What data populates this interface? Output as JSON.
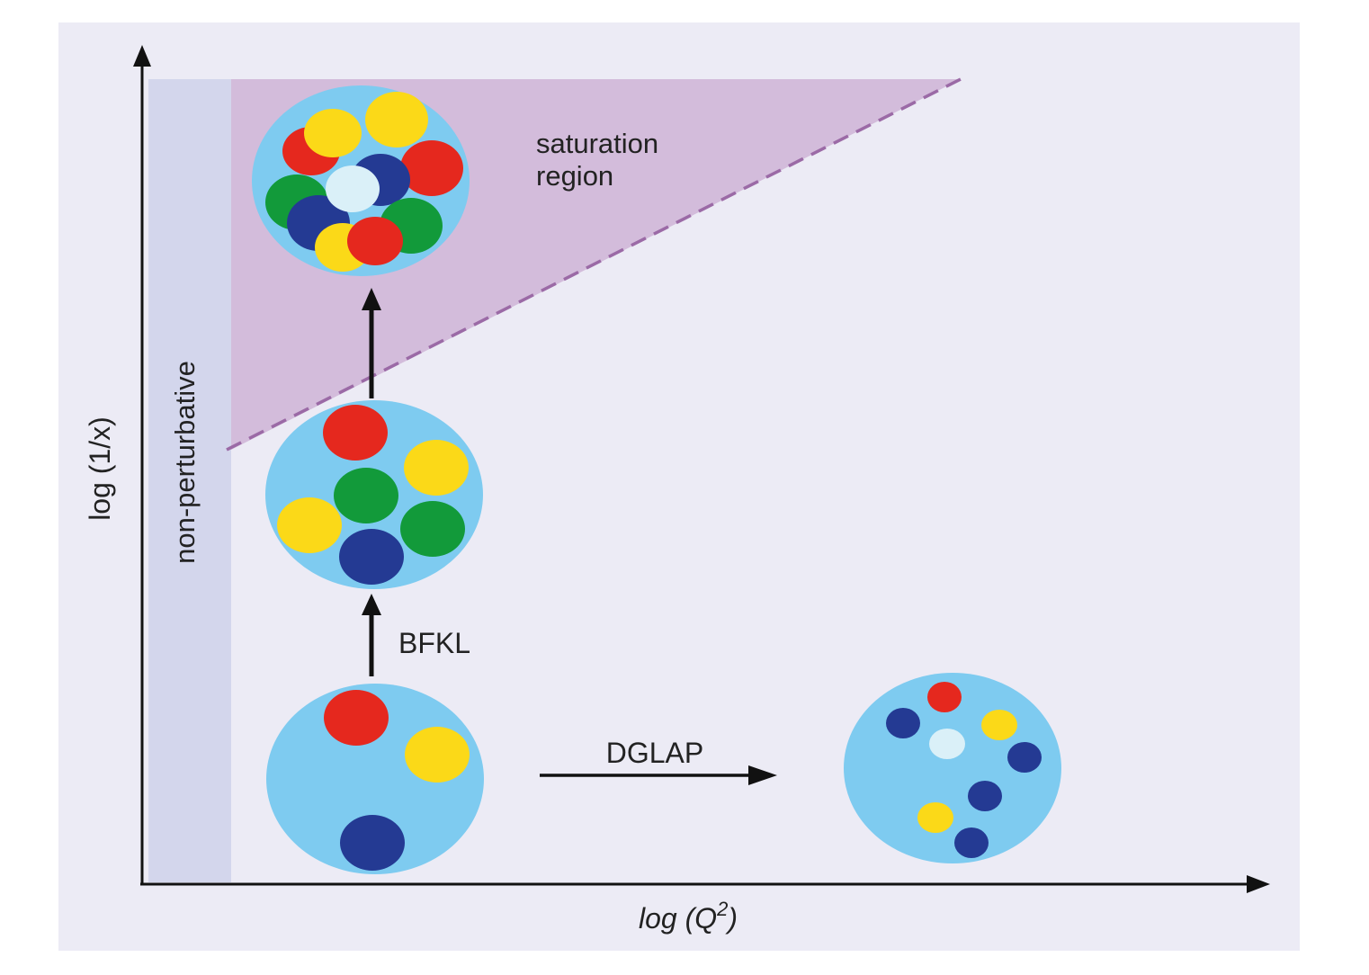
{
  "axes": {
    "x_label": {
      "prefix": "log (",
      "var": "Q",
      "sup": "2",
      "suffix": ")"
    },
    "y_label": "log (1/x)"
  },
  "regions": {
    "non_perturbative": "non-perturbative",
    "saturation_line1": "saturation",
    "saturation_line2": "region"
  },
  "arrows": {
    "bfkl": "BFKL",
    "dglap": "DGLAP"
  },
  "colors": {
    "panel": "#ecebf5",
    "strip": "#d3d6ec",
    "saturation": "#d3bcdb",
    "dash": "#9b6aa6",
    "disc": "#7ecbf0",
    "red": "#e5281e",
    "yellow": "#fbd918",
    "green": "#129a3a",
    "navy": "#243a93",
    "pale": "#daf0f8",
    "axis": "#111111"
  }
}
